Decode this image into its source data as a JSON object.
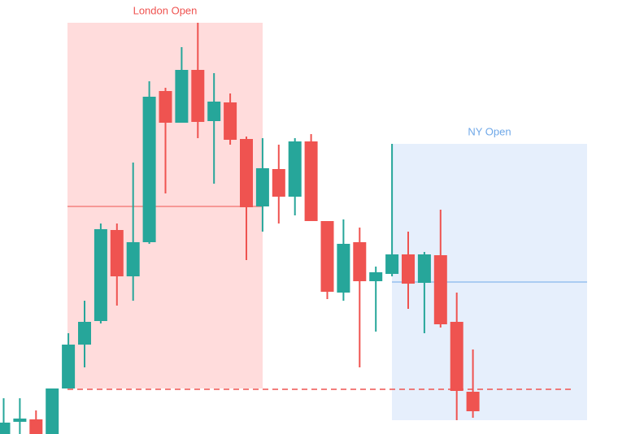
{
  "chart_data": {
    "type": "candlestick",
    "ylim": [
      0,
      534
    ],
    "open": [
      0,
      15,
      18,
      0,
      56,
      110,
      139,
      251,
      194,
      236,
      422,
      383,
      448,
      385,
      408,
      363,
      280,
      326,
      292,
      360,
      262,
      174,
      236,
      188,
      197,
      221,
      186,
      220,
      138,
      52
    ],
    "high": [
      44,
      44,
      29,
      56,
      124,
      164,
      259,
      259,
      334,
      434,
      426,
      476,
      506,
      444,
      419,
      366,
      364,
      356,
      364,
      369,
      262,
      264,
      254,
      206,
      357,
      249,
      224,
      276,
      174,
      104
    ],
    "low": [
      0,
      0,
      0,
      0,
      56,
      82,
      136,
      158,
      164,
      234,
      296,
      383,
      364,
      308,
      356,
      214,
      249,
      259,
      269,
      262,
      166,
      164,
      82,
      126,
      194,
      154,
      124,
      131,
      17,
      20
    ],
    "close": [
      14,
      19,
      0,
      56,
      110,
      138,
      252,
      194,
      236,
      415,
      383,
      448,
      384,
      409,
      362,
      279,
      327,
      292,
      360,
      262,
      175,
      234,
      188,
      199,
      221,
      185,
      221,
      135,
      53,
      28
    ],
    "up_color": "#26a69a",
    "down_color": "#ef5350",
    "sessions": [
      {
        "name": "London Open",
        "high": 506,
        "low": 56,
        "mid": 280,
        "color": "#ef5350",
        "fill": "#ffdcdc"
      },
      {
        "name": "NY Open",
        "high": 357,
        "low": 17,
        "mid": 187,
        "color": "#6fa8e8",
        "fill": "#e6effc"
      }
    ],
    "level": 55,
    "level_color": "#ef5350"
  }
}
